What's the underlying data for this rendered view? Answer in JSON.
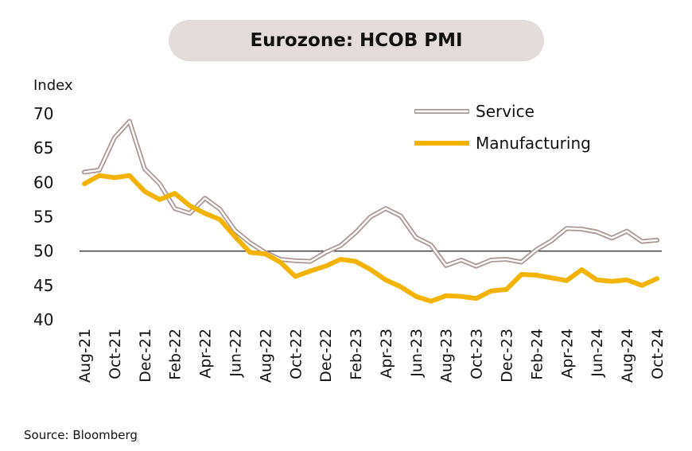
{
  "chart_data": {
    "type": "line",
    "title": "Eurozone: HCOB PMI",
    "ylabel": "Index",
    "ylim": [
      40,
      70
    ],
    "yticks": [
      40,
      45,
      50,
      55,
      60,
      65,
      70
    ],
    "reference_line": 50,
    "legend_position": "top-right",
    "x_tick_labels": [
      "Aug-21",
      "Oct-21",
      "Dec-21",
      "Feb-22",
      "Apr-22",
      "Jun-22",
      "Aug-22",
      "Oct-22",
      "Dec-22",
      "Feb-23",
      "Apr-23",
      "Jun-23",
      "Aug-23",
      "Oct-23",
      "Dec-23",
      "Feb-24",
      "Apr-24",
      "Jun-24",
      "Aug-24",
      "Oct-24"
    ],
    "x": [
      "Aug-21",
      "Sep-21",
      "Oct-21",
      "Nov-21",
      "Dec-21",
      "Jan-22",
      "Feb-22",
      "Mar-22",
      "Apr-22",
      "May-22",
      "Jun-22",
      "Jul-22",
      "Aug-22",
      "Sep-22",
      "Oct-22",
      "Nov-22",
      "Dec-22",
      "Jan-23",
      "Feb-23",
      "Mar-23",
      "Apr-23",
      "May-23",
      "Jun-23",
      "Jul-23",
      "Aug-23",
      "Sep-23",
      "Oct-23",
      "Nov-23",
      "Dec-23",
      "Jan-24",
      "Feb-24",
      "Mar-24",
      "Apr-24",
      "May-24",
      "Jun-24",
      "Jul-24",
      "Aug-24",
      "Sep-24",
      "Oct-24"
    ],
    "series": [
      {
        "name": "Service",
        "color": "#ac9894",
        "style": "double-outline",
        "values": [
          61.5,
          61.8,
          66.5,
          68.9,
          62.0,
          59.8,
          56.2,
          55.5,
          57.7,
          56.1,
          53.0,
          51.2,
          49.8,
          48.8,
          48.6,
          48.5,
          49.8,
          50.8,
          52.7,
          55.0,
          56.2,
          55.1,
          52.0,
          50.9,
          47.9,
          48.7,
          47.8,
          48.7,
          48.8,
          48.4,
          50.2,
          51.5,
          53.3,
          53.2,
          52.8,
          51.9,
          52.9,
          51.4,
          51.6
        ]
      },
      {
        "name": "Manufacturing",
        "color": "#f2b302",
        "style": "solid",
        "values": [
          59.8,
          61.0,
          60.7,
          61.0,
          58.7,
          57.5,
          58.4,
          56.6,
          55.5,
          54.6,
          52.1,
          49.8,
          49.6,
          48.4,
          46.3,
          47.1,
          47.8,
          48.8,
          48.5,
          47.3,
          45.8,
          44.8,
          43.4,
          42.7,
          43.5,
          43.4,
          43.1,
          44.2,
          44.4,
          46.6,
          46.5,
          46.1,
          45.7,
          47.3,
          45.8,
          45.6,
          45.8,
          45.0,
          46.0
        ]
      }
    ]
  },
  "source": "Source: Bloomberg"
}
